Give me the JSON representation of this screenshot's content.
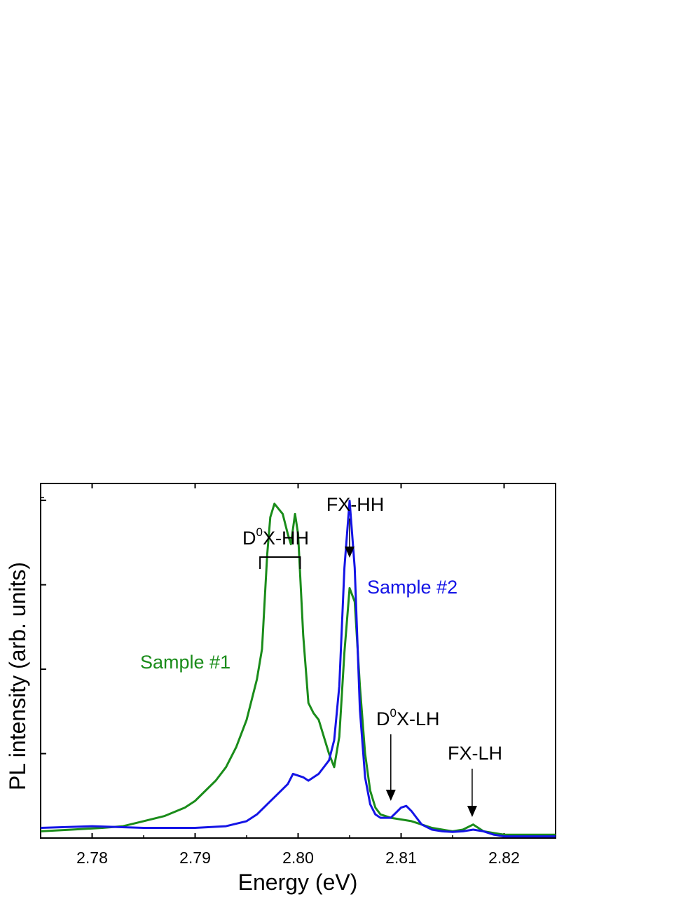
{
  "chart_data": {
    "type": "line",
    "title": "",
    "xlabel": "Energy (eV)",
    "ylabel": "PL intensity (arb. units)",
    "xlim": [
      2.775,
      2.825
    ],
    "ylim": [
      0,
      1.05
    ],
    "xticks": [
      {
        "value": 2.78,
        "label": "2.78"
      },
      {
        "value": 2.79,
        "label": "2.79"
      },
      {
        "value": 2.8,
        "label": "2.80"
      },
      {
        "value": 2.81,
        "label": "2.81"
      },
      {
        "value": 2.82,
        "label": "2.82"
      }
    ],
    "yticks": [
      0.25,
      0.5,
      0.75,
      1.0
    ],
    "ytick_labels_shown": false,
    "grid": false,
    "series": [
      {
        "name": "Sample #1",
        "color": "#1a8c1a",
        "points": [
          [
            2.775,
            0.02
          ],
          [
            2.778,
            0.025
          ],
          [
            2.781,
            0.03
          ],
          [
            2.783,
            0.035
          ],
          [
            2.785,
            0.05
          ],
          [
            2.787,
            0.065
          ],
          [
            2.789,
            0.09
          ],
          [
            2.79,
            0.11
          ],
          [
            2.791,
            0.14
          ],
          [
            2.792,
            0.17
          ],
          [
            2.793,
            0.21
          ],
          [
            2.794,
            0.27
          ],
          [
            2.795,
            0.35
          ],
          [
            2.796,
            0.47
          ],
          [
            2.7965,
            0.56
          ],
          [
            2.797,
            0.84
          ],
          [
            2.7973,
            0.95
          ],
          [
            2.7977,
            0.99
          ],
          [
            2.7985,
            0.96
          ],
          [
            2.799,
            0.9
          ],
          [
            2.7993,
            0.87
          ],
          [
            2.7997,
            0.96
          ],
          [
            2.8,
            0.9
          ],
          [
            2.8005,
            0.6
          ],
          [
            2.801,
            0.4
          ],
          [
            2.8015,
            0.37
          ],
          [
            2.802,
            0.35
          ],
          [
            2.803,
            0.25
          ],
          [
            2.8035,
            0.21
          ],
          [
            2.804,
            0.3
          ],
          [
            2.8045,
            0.55
          ],
          [
            2.805,
            0.74
          ],
          [
            2.8055,
            0.7
          ],
          [
            2.806,
            0.45
          ],
          [
            2.8065,
            0.25
          ],
          [
            2.807,
            0.14
          ],
          [
            2.8075,
            0.09
          ],
          [
            2.808,
            0.07
          ],
          [
            2.809,
            0.06
          ],
          [
            2.81,
            0.055
          ],
          [
            2.811,
            0.05
          ],
          [
            2.812,
            0.04
          ],
          [
            2.813,
            0.03
          ],
          [
            2.814,
            0.025
          ],
          [
            2.815,
            0.02
          ],
          [
            2.816,
            0.025
          ],
          [
            2.817,
            0.04
          ],
          [
            2.8175,
            0.03
          ],
          [
            2.818,
            0.02
          ],
          [
            2.819,
            0.015
          ],
          [
            2.82,
            0.01
          ],
          [
            2.822,
            0.01
          ],
          [
            2.825,
            0.01
          ]
        ]
      },
      {
        "name": "Sample #2",
        "color": "#1414e6",
        "points": [
          [
            2.775,
            0.03
          ],
          [
            2.78,
            0.035
          ],
          [
            2.785,
            0.03
          ],
          [
            2.79,
            0.03
          ],
          [
            2.793,
            0.035
          ],
          [
            2.795,
            0.05
          ],
          [
            2.796,
            0.07
          ],
          [
            2.797,
            0.1
          ],
          [
            2.798,
            0.13
          ],
          [
            2.799,
            0.16
          ],
          [
            2.7995,
            0.19
          ],
          [
            2.8005,
            0.18
          ],
          [
            2.801,
            0.17
          ],
          [
            2.802,
            0.19
          ],
          [
            2.803,
            0.23
          ],
          [
            2.8035,
            0.29
          ],
          [
            2.804,
            0.45
          ],
          [
            2.8045,
            0.8
          ],
          [
            2.805,
            0.999
          ],
          [
            2.8055,
            0.8
          ],
          [
            2.806,
            0.38
          ],
          [
            2.8065,
            0.18
          ],
          [
            2.807,
            0.1
          ],
          [
            2.8075,
            0.07
          ],
          [
            2.808,
            0.06
          ],
          [
            2.809,
            0.06
          ],
          [
            2.8095,
            0.075
          ],
          [
            2.81,
            0.09
          ],
          [
            2.8105,
            0.095
          ],
          [
            2.811,
            0.08
          ],
          [
            2.8115,
            0.06
          ],
          [
            2.812,
            0.04
          ],
          [
            2.813,
            0.025
          ],
          [
            2.814,
            0.02
          ],
          [
            2.815,
            0.018
          ],
          [
            2.816,
            0.02
          ],
          [
            2.817,
            0.025
          ],
          [
            2.818,
            0.02
          ],
          [
            2.819,
            0.01
          ],
          [
            2.82,
            0.005
          ],
          [
            2.822,
            0.005
          ],
          [
            2.825,
            0.005
          ]
        ]
      }
    ],
    "annotations": [
      {
        "text_base": "D",
        "superscript": "0",
        "text_tail": "X-HH",
        "bracket_x": [
          2.7963,
          2.8002
        ],
        "bracket_y": 1.0
      },
      {
        "text": "FX-HH",
        "arrow_to": [
          2.805,
          1.02
        ]
      },
      {
        "text_base": "D",
        "superscript": "0",
        "text_tail": "X-LH",
        "arrow_to": [
          2.809,
          0.07
        ]
      },
      {
        "text": "FX-LH",
        "arrow_to": [
          2.8169,
          0.04
        ]
      }
    ]
  }
}
